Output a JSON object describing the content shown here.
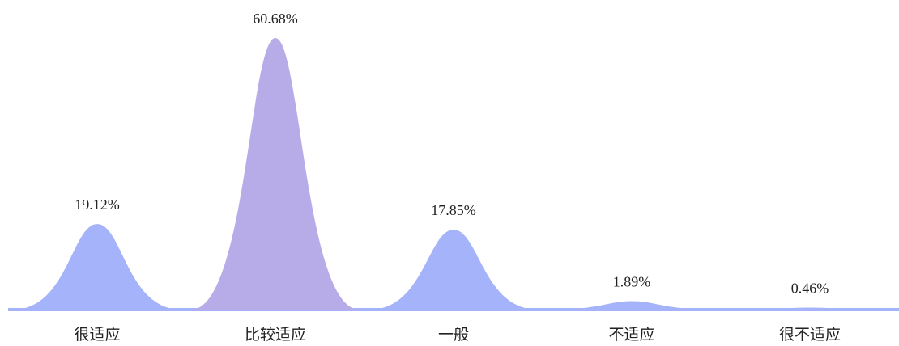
{
  "chart_data": {
    "type": "area",
    "title": "",
    "xlabel": "",
    "ylabel": "",
    "categories": [
      "很适应",
      "比较适应",
      "一般",
      "不适应",
      "很不适应"
    ],
    "values": [
      19.12,
      60.68,
      17.85,
      1.89,
      0.46
    ],
    "value_labels": [
      "19.12%",
      "60.68%",
      "17.85%",
      "1.89%",
      "0.46%"
    ],
    "ylim": [
      0,
      60.68
    ],
    "grid": false,
    "legend": "none",
    "colors": {
      "default_fill": "#a5b4fa",
      "highlight_fill": "#b8ace8",
      "baseline": "#a5b4fa",
      "text": "#222222"
    },
    "highlight_index": 1
  }
}
